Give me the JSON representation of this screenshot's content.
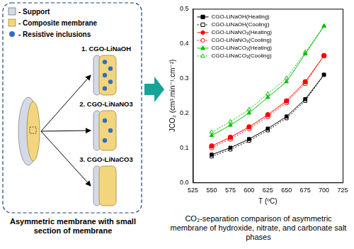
{
  "diagram": {
    "legend": [
      {
        "label": "- Support",
        "color": "#d3d9e6"
      },
      {
        "label": "- Composite membrane",
        "color": "#f3d57e"
      },
      {
        "label": "- Resistive inclusions",
        "color": "#2f6fc4"
      }
    ],
    "membranes": [
      "1. CGO-LiNaOH",
      "2. CGO-LiNaNO3",
      "3. CGO-LiNaCO3"
    ],
    "caption": "Asymmetric membrane with small section of membrane"
  },
  "chart_caption": "CO₂-separation comparison of asymmetric membrane of hydroxide, nitrate, and carbonate salt phases",
  "chart_data": {
    "type": "line",
    "x_label": "T (ºC)",
    "y_label": "JCO₂ (cm³.min⁻¹.cm⁻²)",
    "x": [
      550,
      575,
      600,
      625,
      650,
      675,
      700
    ],
    "series": [
      {
        "name": "CGO-LiNaOH(Heating)",
        "color": "#000000",
        "marker": "square",
        "line_style": "solid",
        "values": [
          0.08,
          0.1,
          0.125,
          0.155,
          0.19,
          0.24,
          0.31
        ]
      },
      {
        "name": "CGO-LiNaOH(Cooling)",
        "color": "#000000",
        "marker": "open-square",
        "line_style": "dotted",
        "values": [
          0.075,
          0.095,
          0.12,
          0.15,
          0.185,
          0.235,
          0.31
        ]
      },
      {
        "name": "CGO-LiNaNO₃(Heating)",
        "color": "#ff0000",
        "marker": "circle",
        "line_style": "solid",
        "values": [
          0.105,
          0.13,
          0.16,
          0.195,
          0.235,
          0.29,
          0.365
        ]
      },
      {
        "name": "CGO-LiNaNO₃(Cooling)",
        "color": "#ff0000",
        "marker": "open-circle",
        "line_style": "dotted",
        "values": [
          0.1,
          0.125,
          0.155,
          0.19,
          0.23,
          0.285,
          0.365
        ]
      },
      {
        "name": "CGO-LiNaCO₃(Heating)",
        "color": "#00c000",
        "marker": "triangle",
        "line_style": "solid",
        "values": [
          0.135,
          0.165,
          0.2,
          0.245,
          0.29,
          0.37,
          0.45
        ]
      },
      {
        "name": "CGO-LiNaCO₃(Cooling)",
        "color": "#00c000",
        "marker": "open-triangle",
        "line_style": "dotted",
        "values": [
          0.145,
          0.175,
          0.21,
          0.255,
          0.3,
          0.375,
          0.45
        ]
      }
    ],
    "xlim": [
      525,
      725
    ],
    "xticks": [
      525,
      550,
      575,
      600,
      625,
      650,
      675,
      700,
      725
    ],
    "ylim": [
      0,
      0.5
    ],
    "yticks": [
      {
        "value": 0,
        "label": "0.0"
      },
      0.1,
      0.2,
      0.3,
      0.4,
      0.5
    ],
    "grid": false,
    "legend": "upper left"
  }
}
